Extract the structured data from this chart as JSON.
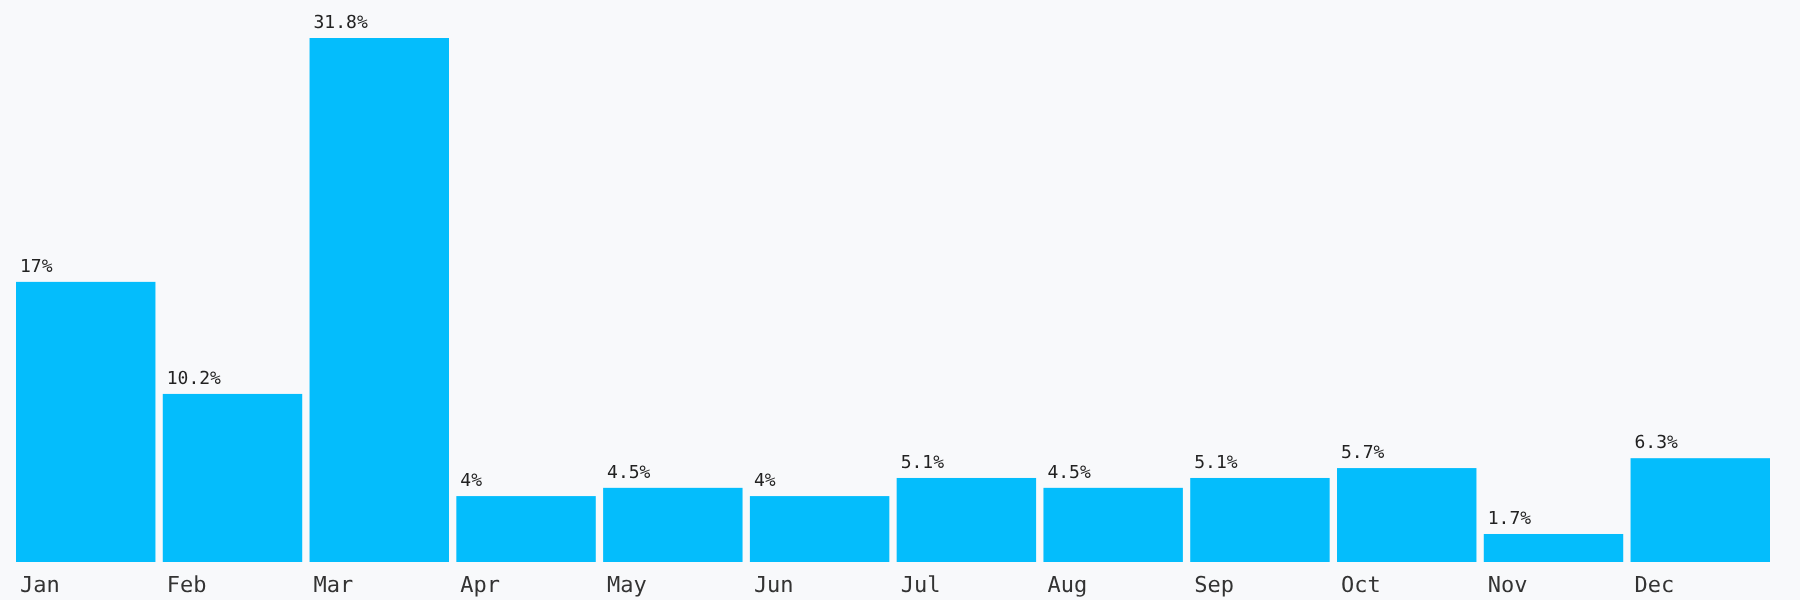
{
  "chart_data": {
    "type": "bar",
    "categories": [
      "Jan",
      "Feb",
      "Mar",
      "Apr",
      "May",
      "Jun",
      "Jul",
      "Aug",
      "Sep",
      "Oct",
      "Nov",
      "Dec"
    ],
    "values": [
      17,
      10.2,
      31.8,
      4,
      4.5,
      4,
      5.1,
      4.5,
      5.1,
      5.7,
      1.7,
      6.3
    ],
    "value_labels": [
      "17%",
      "10.2%",
      "31.8%",
      "4%",
      "4.5%",
      "4%",
      "5.1%",
      "4.5%",
      "5.1%",
      "5.7%",
      "1.7%",
      "6.3%"
    ],
    "color": "#04bdfc"
  }
}
